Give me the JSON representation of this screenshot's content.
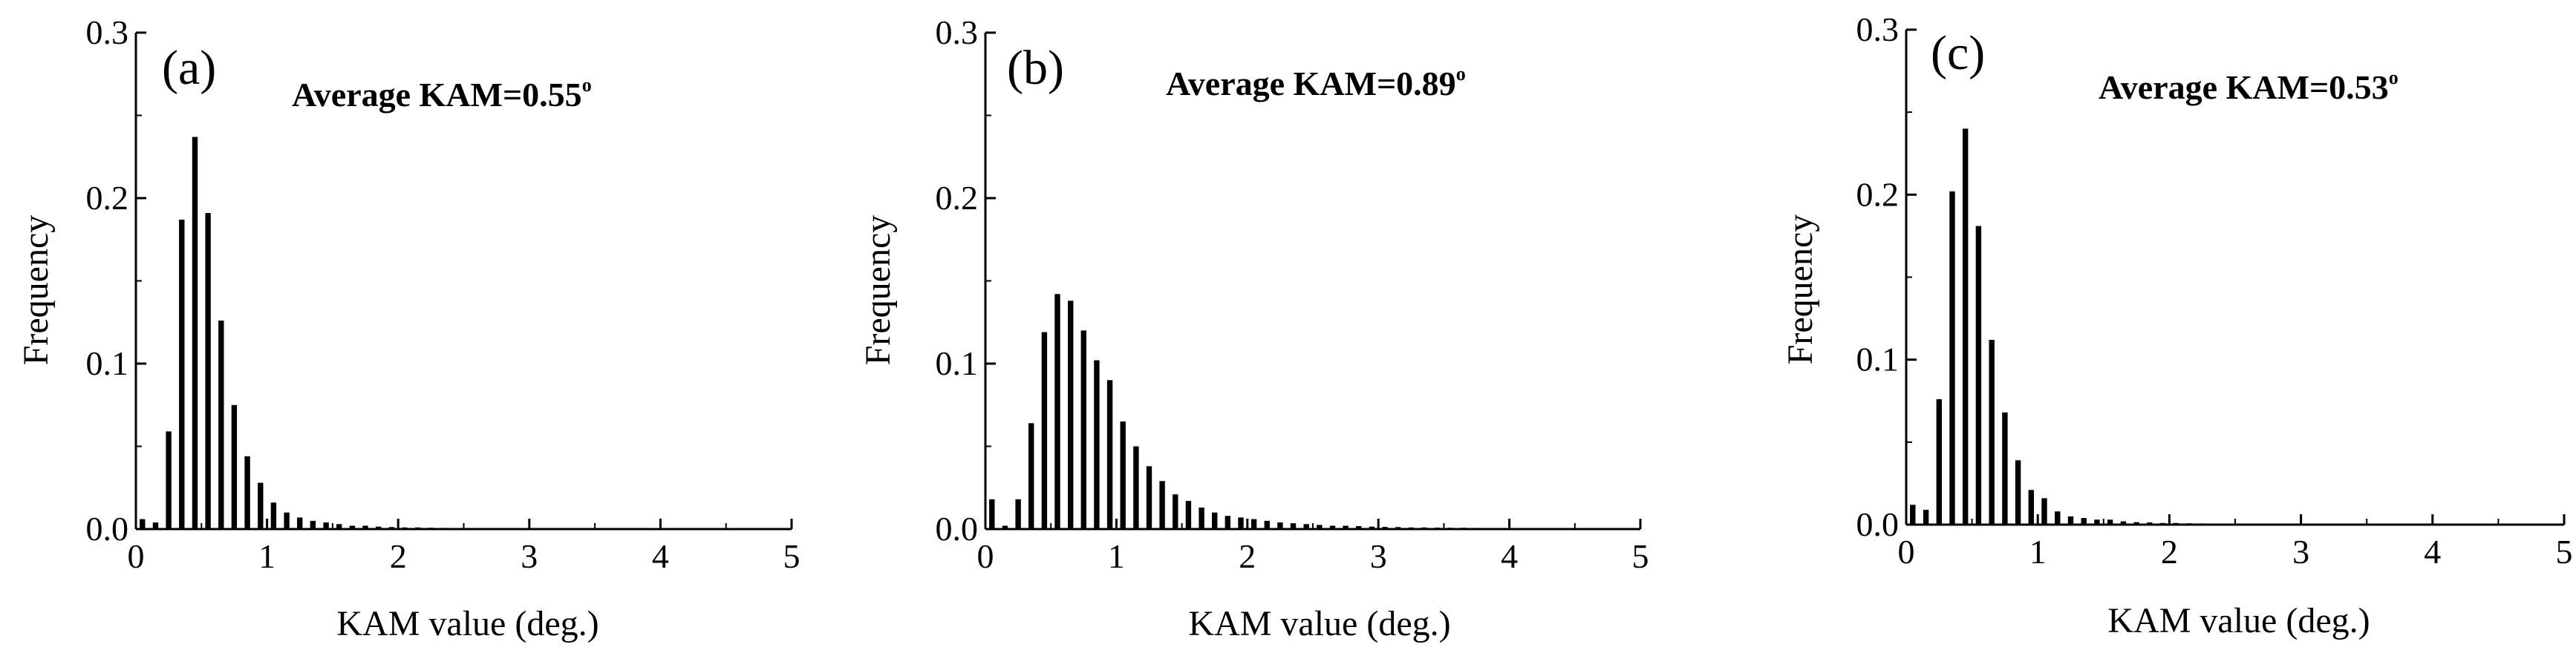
{
  "figure": {
    "panel_count": 3
  },
  "chart_data": [
    {
      "type": "bar",
      "panel_label": "(a)",
      "annotation": "Average KAM=0.55",
      "annotation_superscript": "o",
      "xlabel": "KAM value (deg.)",
      "ylabel": "Frequency",
      "xlim": [
        0,
        5
      ],
      "ylim": [
        0,
        0.3
      ],
      "xticks": [
        "0",
        "1",
        "2",
        "3",
        "4",
        "5"
      ],
      "yticks": [
        "0.0",
        "0.1",
        "0.2",
        "0.3"
      ],
      "bin_width": 0.1,
      "x": [
        0.0,
        0.1,
        0.2,
        0.3,
        0.4,
        0.5,
        0.6,
        0.7,
        0.8,
        0.9,
        1.0,
        1.1,
        1.2,
        1.3,
        1.4,
        1.5,
        1.6,
        1.7,
        1.8,
        1.9,
        2.0,
        2.1,
        2.2,
        2.3,
        2.4,
        2.5,
        2.6,
        2.7,
        2.8,
        2.9,
        3.0,
        3.1,
        3.2,
        3.3,
        3.4,
        3.5,
        3.6,
        3.7,
        3.8,
        3.9,
        4.0,
        4.1,
        4.2,
        4.3,
        4.4,
        4.5,
        4.6,
        4.7,
        4.8,
        4.9
      ],
      "values": [
        0.006,
        0.004,
        0.059,
        0.187,
        0.237,
        0.191,
        0.126,
        0.075,
        0.044,
        0.028,
        0.016,
        0.01,
        0.007,
        0.005,
        0.004,
        0.003,
        0.002,
        0.002,
        0.0015,
        0.0012,
        0.001,
        0.001,
        0.0008,
        0.0007,
        0.0006,
        0.0006,
        0.0005,
        0.0005,
        0.0004,
        0.0004,
        0.0004,
        0.0003,
        0.0003,
        0.0003,
        0.0003,
        0.0002,
        0.0002,
        0.0002,
        0.0002,
        0.0002,
        0.0002,
        0.0002,
        0.0002,
        0.0002,
        0.0002,
        0.0002,
        0.0002,
        0.0002,
        0.0002,
        0.0002
      ]
    },
    {
      "type": "bar",
      "panel_label": "(b)",
      "annotation": "Average KAM=0.89",
      "annotation_superscript": "o",
      "xlabel": "KAM value (deg.)",
      "ylabel": "Frequency",
      "xlim": [
        0,
        5
      ],
      "ylim": [
        0,
        0.3
      ],
      "xticks": [
        "0",
        "1",
        "2",
        "3",
        "4",
        "5"
      ],
      "yticks": [
        "0.0",
        "0.1",
        "0.2",
        "0.3"
      ],
      "bin_width": 0.1,
      "x": [
        0.0,
        0.1,
        0.2,
        0.3,
        0.4,
        0.5,
        0.6,
        0.7,
        0.8,
        0.9,
        1.0,
        1.1,
        1.2,
        1.3,
        1.4,
        1.5,
        1.6,
        1.7,
        1.8,
        1.9,
        2.0,
        2.1,
        2.2,
        2.3,
        2.4,
        2.5,
        2.6,
        2.7,
        2.8,
        2.9,
        3.0,
        3.1,
        3.2,
        3.3,
        3.4,
        3.5,
        3.6,
        3.7,
        3.8,
        3.9,
        4.0,
        4.1,
        4.2,
        4.3,
        4.4,
        4.5,
        4.6,
        4.7,
        4.8,
        4.9
      ],
      "values": [
        0.018,
        0.002,
        0.018,
        0.064,
        0.119,
        0.142,
        0.138,
        0.12,
        0.102,
        0.09,
        0.065,
        0.05,
        0.038,
        0.029,
        0.021,
        0.017,
        0.013,
        0.01,
        0.008,
        0.007,
        0.006,
        0.005,
        0.004,
        0.0035,
        0.003,
        0.0025,
        0.002,
        0.002,
        0.0018,
        0.0015,
        0.0013,
        0.0012,
        0.001,
        0.001,
        0.0009,
        0.0008,
        0.0008,
        0.0007,
        0.0006,
        0.0006,
        0.0005,
        0.0005,
        0.0005,
        0.0004,
        0.0004,
        0.0004,
        0.0003,
        0.0003,
        0.0003,
        0.0003
      ]
    },
    {
      "type": "bar",
      "panel_label": "(c)",
      "annotation": "Average KAM=0.53",
      "annotation_superscript": "o",
      "xlabel": "KAM value (deg.)",
      "ylabel": "Frequency",
      "xlim": [
        0,
        5
      ],
      "ylim": [
        0,
        0.3
      ],
      "xticks": [
        "0",
        "1",
        "2",
        "3",
        "4",
        "5"
      ],
      "yticks": [
        "0.0",
        "0.1",
        "0.2",
        "0.3"
      ],
      "bin_width": 0.1,
      "x": [
        0.0,
        0.1,
        0.2,
        0.3,
        0.4,
        0.5,
        0.6,
        0.7,
        0.8,
        0.9,
        1.0,
        1.1,
        1.2,
        1.3,
        1.4,
        1.5,
        1.6,
        1.7,
        1.8,
        1.9,
        2.0,
        2.1,
        2.2,
        2.3,
        2.4,
        2.5,
        2.6,
        2.7,
        2.8,
        2.9,
        3.0,
        3.1,
        3.2,
        3.3,
        3.4,
        3.5,
        3.6,
        3.7,
        3.8,
        3.9,
        4.0,
        4.1,
        4.2,
        4.3,
        4.4,
        4.5,
        4.6,
        4.7,
        4.8,
        4.9
      ],
      "values": [
        0.012,
        0.009,
        0.076,
        0.202,
        0.24,
        0.181,
        0.112,
        0.068,
        0.039,
        0.021,
        0.016,
        0.008,
        0.005,
        0.004,
        0.003,
        0.003,
        0.002,
        0.0015,
        0.0013,
        0.001,
        0.001,
        0.0008,
        0.0007,
        0.0006,
        0.0006,
        0.0005,
        0.0005,
        0.0004,
        0.0004,
        0.0004,
        0.0003,
        0.0003,
        0.0003,
        0.0003,
        0.0002,
        0.0002,
        0.0002,
        0.0002,
        0.0002,
        0.0002,
        0.0002,
        0.0002,
        0.0002,
        0.0002,
        0.0002,
        0.0002,
        0.0002,
        0.0002,
        0.0002,
        0.0002
      ]
    }
  ]
}
